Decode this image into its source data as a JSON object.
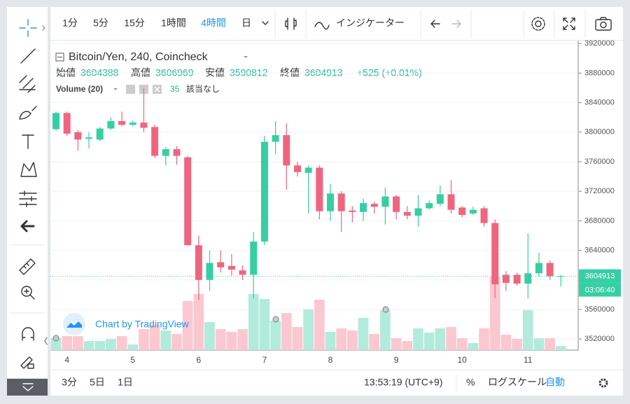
{
  "toolbar": {
    "intervals": [
      "1分",
      "5分",
      "15分",
      "1時間",
      "4時間",
      "日"
    ],
    "active_interval_index": 4,
    "indicators": "インジケーター"
  },
  "chart_data": {
    "type": "candlestick",
    "title": "Bitcoin/Yen, 240, Coincheck",
    "legend_labels": {
      "open": "始値",
      "high": "高値",
      "low": "安値",
      "close": "終値"
    },
    "change_label": "+525 (+0.01%)",
    "volume_title": "Volume (20)",
    "volume_status": "該当なし",
    "countdown": "03:06:40",
    "watermark": "Chart by TradingView",
    "categories": [
      null,
      "4",
      null,
      null,
      null,
      null,
      null,
      "5",
      null,
      null,
      null,
      null,
      null,
      "6",
      null,
      null,
      null,
      null,
      null,
      "7",
      null,
      null,
      null,
      null,
      null,
      "8",
      null,
      null,
      null,
      null,
      null,
      "9",
      null,
      null,
      null,
      null,
      null,
      "10",
      null,
      null,
      null,
      null,
      null,
      "11",
      null,
      null,
      null
    ],
    "open": [
      3804000,
      3826000,
      3800000,
      3791000,
      3790000,
      3805000,
      3815000,
      3810000,
      3813000,
      3807000,
      3768000,
      3777000,
      3766000,
      3647000,
      3600000,
      3624000,
      3619000,
      3613000,
      3607000,
      3652000,
      3787000,
      3796000,
      3755000,
      3745000,
      3752000,
      3693000,
      3717000,
      3694000,
      3692000,
      3703000,
      3699000,
      3713000,
      3692000,
      3687000,
      3697000,
      3703000,
      3716000,
      3698000,
      3690000,
      3697000,
      3677000,
      3607000,
      3607000,
      3595000,
      3609000,
      3623000,
      3604388
    ],
    "high": [
      3828000,
      3828000,
      3803000,
      3800000,
      3807000,
      3820000,
      3828000,
      3816000,
      3860000,
      3810000,
      3780000,
      3781000,
      3768000,
      3660000,
      3640000,
      3640000,
      3635000,
      3620000,
      3665000,
      3795000,
      3815000,
      3812000,
      3760000,
      3755000,
      3755000,
      3730000,
      3720000,
      3700000,
      3710000,
      3706000,
      3725000,
      3715000,
      3700000,
      3715000,
      3708000,
      3728000,
      3735000,
      3700000,
      3699000,
      3700000,
      3682000,
      3612000,
      3610000,
      3663000,
      3637000,
      3626000,
      3606969
    ],
    "low": [
      3802000,
      3795000,
      3775000,
      3778000,
      3788000,
      3803000,
      3808000,
      3808000,
      3800000,
      3765000,
      3755000,
      3756000,
      3646000,
      3573000,
      3585000,
      3610000,
      3606000,
      3600000,
      3575000,
      3647000,
      3770000,
      3722000,
      3740000,
      3690000,
      3682000,
      3680000,
      3665000,
      3678000,
      3680000,
      3690000,
      3675000,
      3682000,
      3682000,
      3672000,
      3695000,
      3700000,
      3690000,
      3685000,
      3688000,
      3672000,
      3575000,
      3585000,
      3592000,
      3575000,
      3605000,
      3600000,
      3590812
    ],
    "close": [
      3826000,
      3798000,
      3790000,
      3793000,
      3805000,
      3815000,
      3810000,
      3813000,
      3806000,
      3768000,
      3777000,
      3768000,
      3647000,
      3600000,
      3623000,
      3617000,
      3614000,
      3607000,
      3652000,
      3787000,
      3796000,
      3755000,
      3746000,
      3752000,
      3693000,
      3717000,
      3693000,
      3692000,
      3704000,
      3699000,
      3713000,
      3692000,
      3687000,
      3697000,
      3704000,
      3716000,
      3695000,
      3688000,
      3695000,
      3677000,
      3594000,
      3596000,
      3595000,
      3609000,
      3623000,
      3605000,
      3604913
    ],
    "volume": [
      102,
      120,
      120,
      78,
      78,
      96,
      120,
      48,
      180,
      216,
      168,
      138,
      420,
      480,
      240,
      180,
      156,
      180,
      480,
      438,
      252,
      318,
      198,
      348,
      432,
      156,
      186,
      168,
      276,
      138,
      342,
      102,
      78,
      186,
      150,
      186,
      198,
      102,
      60,
      186,
      630,
      132,
      96,
      342,
      102,
      102,
      35
    ],
    "up_color": "#35cfa3",
    "down_color": "#ef6580",
    "volume_up_color": "#b2ebdb",
    "volume_down_color": "#fbc8d1",
    "ylim": [
      3505000,
      3924000
    ],
    "yticks": [
      3520000,
      3560000,
      3600000,
      3640000,
      3680000,
      3720000,
      3760000,
      3800000,
      3840000,
      3880000,
      3920000
    ],
    "grid": true
  },
  "bottom_bar": {
    "ranges": [
      "3分",
      "5日",
      "1日"
    ],
    "clock": "13:53:19 (UTC+9)",
    "percent": "%",
    "log_scale": "ログスケール",
    "auto": "自動"
  }
}
